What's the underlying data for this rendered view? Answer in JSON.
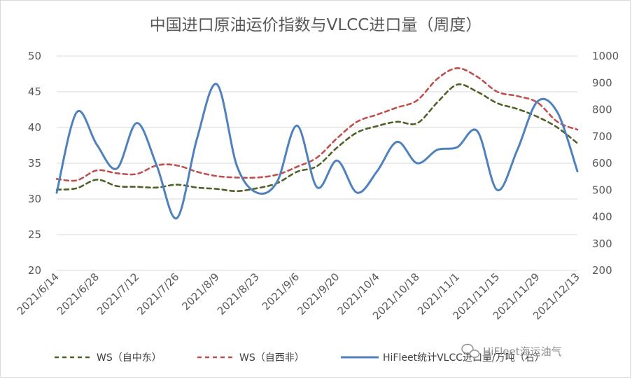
{
  "chart_data": {
    "type": "line",
    "title": "中国进口原油运价指数与VLCC进口量（周度）",
    "categories": [
      "2021/6/14",
      "2021/6/21",
      "2021/6/28",
      "2021/7/5",
      "2021/7/12",
      "2021/7/19",
      "2021/7/26",
      "2021/8/2",
      "2021/8/9",
      "2021/8/16",
      "2021/8/23",
      "2021/8/30",
      "2021/9/6",
      "2021/9/13",
      "2021/9/20",
      "2021/9/27",
      "2021/10/4",
      "2021/10/11",
      "2021/10/18",
      "2021/10/25",
      "2021/11/1",
      "2021/11/8",
      "2021/11/15",
      "2021/11/22",
      "2021/11/29",
      "2021/12/6",
      "2021/12/13"
    ],
    "x_tick_labels": [
      "2021/6/14",
      "2021/6/28",
      "2021/7/12",
      "2021/7/26",
      "2021/8/9",
      "2021/8/23",
      "2021/9/6",
      "2021/9/20",
      "2021/10/4",
      "2021/10/18",
      "2021/11/1",
      "2021/11/15",
      "2021/11/29",
      "2021/12/13"
    ],
    "y_left": {
      "ticks": [
        "20",
        "25",
        "30",
        "35",
        "40",
        "45",
        "50"
      ],
      "ylim": [
        20,
        50
      ]
    },
    "y_right": {
      "ticks": [
        "200",
        "300",
        "400",
        "500",
        "600",
        "700",
        "800",
        "900",
        "1000"
      ],
      "ylim": [
        200,
        1000
      ]
    },
    "grid": true,
    "legend_position": "bottom",
    "series": [
      {
        "name": "WS（自中东）",
        "axis": "left",
        "style": "dashed",
        "color": "#4f6228",
        "values": [
          31.3,
          31.5,
          32.7,
          31.8,
          31.7,
          31.6,
          32.0,
          31.6,
          31.4,
          31.1,
          31.5,
          32.2,
          33.8,
          34.6,
          37.2,
          39.3,
          40.2,
          40.8,
          40.6,
          43.5,
          46.0,
          45.0,
          43.4,
          42.6,
          41.5,
          40.0,
          37.8
        ]
      },
      {
        "name": "WS（自西非）",
        "axis": "left",
        "style": "dashed",
        "color": "#c0504d",
        "values": [
          32.8,
          32.6,
          34.0,
          33.6,
          33.5,
          34.7,
          34.7,
          33.8,
          33.2,
          33.0,
          33.0,
          33.4,
          34.5,
          35.8,
          38.5,
          40.8,
          41.8,
          42.8,
          43.8,
          46.8,
          48.3,
          47.1,
          45.0,
          44.4,
          43.5,
          40.8,
          39.7
        ]
      },
      {
        "name": "HiFleet统计VLCC进口量/万吨（右）",
        "axis": "right",
        "style": "solid",
        "color": "#4f81bd",
        "values": [
          490,
          790,
          670,
          580,
          750,
          590,
          395,
          690,
          895,
          590,
          490,
          530,
          740,
          510,
          610,
          490,
          570,
          680,
          600,
          650,
          660,
          720,
          500,
          650,
          830,
          790,
          570
        ]
      }
    ]
  },
  "watermark": {
    "text": "HiFleet海运油气",
    "icon": "wechat-icon"
  }
}
